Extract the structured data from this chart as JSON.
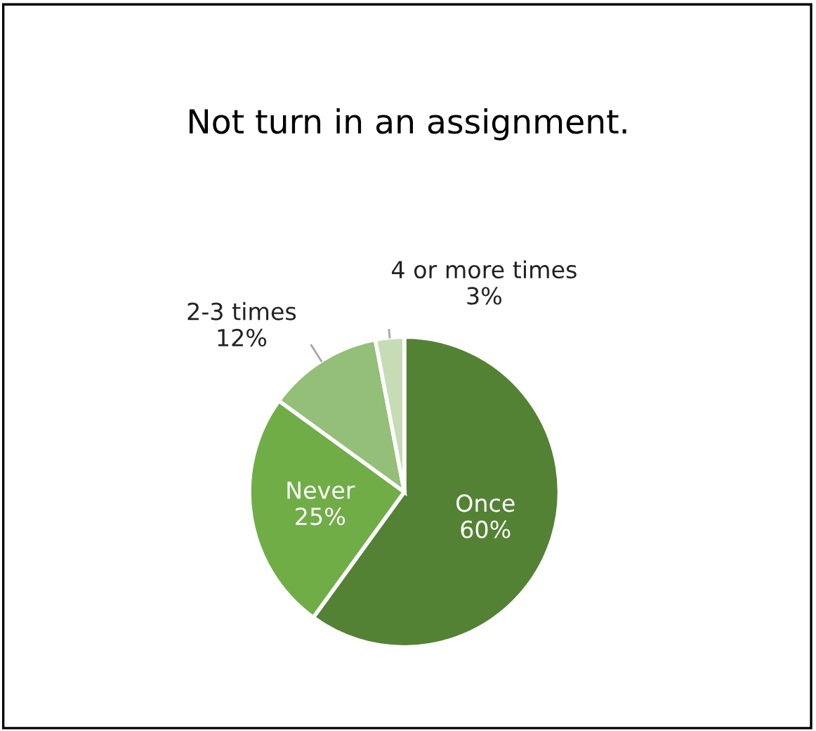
{
  "chart_data": {
    "type": "pie",
    "title": "Not turn in an assignment.",
    "categories": [
      "Once",
      "Never",
      "2-3 times",
      "4 or more times"
    ],
    "values": [
      60,
      25,
      12,
      3
    ],
    "value_labels": [
      "60%",
      "25%",
      "12%",
      "3%"
    ],
    "colors": [
      "#548235",
      "#70ad47",
      "#93bf78",
      "#c5dcb5"
    ]
  }
}
